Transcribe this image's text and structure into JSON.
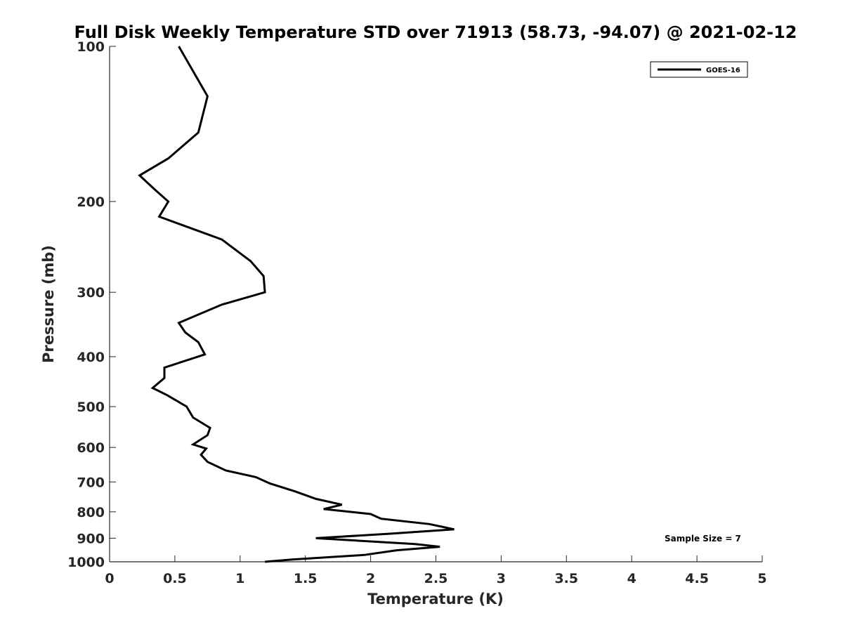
{
  "chart_data": {
    "type": "line",
    "title": "Full Disk Weekly Temperature STD over 71913 (58.73, -94.07) @ 2021-02-12",
    "xlabel": "Temperature (K)",
    "ylabel": "Pressure (mb)",
    "xlim": [
      0,
      5
    ],
    "ylim": [
      100,
      1000
    ],
    "y_scale": "log",
    "y_reversed": true,
    "x_ticks": [
      "0",
      "0.5",
      "1",
      "1.5",
      "2",
      "2.5",
      "3",
      "3.5",
      "4",
      "4.5",
      "5"
    ],
    "y_ticks": [
      "100",
      "200",
      "300",
      "400",
      "500",
      "600",
      "700",
      "800",
      "900",
      "1000"
    ],
    "grid": false,
    "legend_position": "top-right",
    "annotation": "Sample Size = 7",
    "series": [
      {
        "name": "GOES-16",
        "color": "#000000",
        "points": [
          [
            0.53,
            100
          ],
          [
            0.75,
            125
          ],
          [
            0.68,
            147
          ],
          [
            0.45,
            165
          ],
          [
            0.23,
            178
          ],
          [
            0.34,
            189
          ],
          [
            0.45,
            200
          ],
          [
            0.38,
            214
          ],
          [
            0.86,
            237
          ],
          [
            1.08,
            261
          ],
          [
            1.18,
            279
          ],
          [
            1.19,
            300
          ],
          [
            0.86,
            317
          ],
          [
            0.53,
            344
          ],
          [
            0.58,
            359
          ],
          [
            0.68,
            375
          ],
          [
            0.73,
            396
          ],
          [
            0.42,
            420
          ],
          [
            0.42,
            440
          ],
          [
            0.33,
            460
          ],
          [
            0.44,
            475
          ],
          [
            0.59,
            500
          ],
          [
            0.64,
            525
          ],
          [
            0.77,
            550
          ],
          [
            0.75,
            568
          ],
          [
            0.64,
            592
          ],
          [
            0.74,
            603
          ],
          [
            0.7,
            620
          ],
          [
            0.75,
            640
          ],
          [
            0.89,
            665
          ],
          [
            1.12,
            685
          ],
          [
            1.23,
            705
          ],
          [
            1.42,
            730
          ],
          [
            1.58,
            755
          ],
          [
            1.78,
            775
          ],
          [
            1.64,
            790
          ],
          [
            2.0,
            808
          ],
          [
            2.08,
            825
          ],
          [
            2.45,
            845
          ],
          [
            2.64,
            865
          ],
          [
            2.15,
            882
          ],
          [
            1.58,
            900
          ],
          [
            2.34,
            924
          ],
          [
            2.53,
            935
          ],
          [
            2.2,
            950
          ],
          [
            1.95,
            970
          ],
          [
            1.4,
            990
          ],
          [
            1.19,
            1000
          ]
        ]
      }
    ]
  }
}
